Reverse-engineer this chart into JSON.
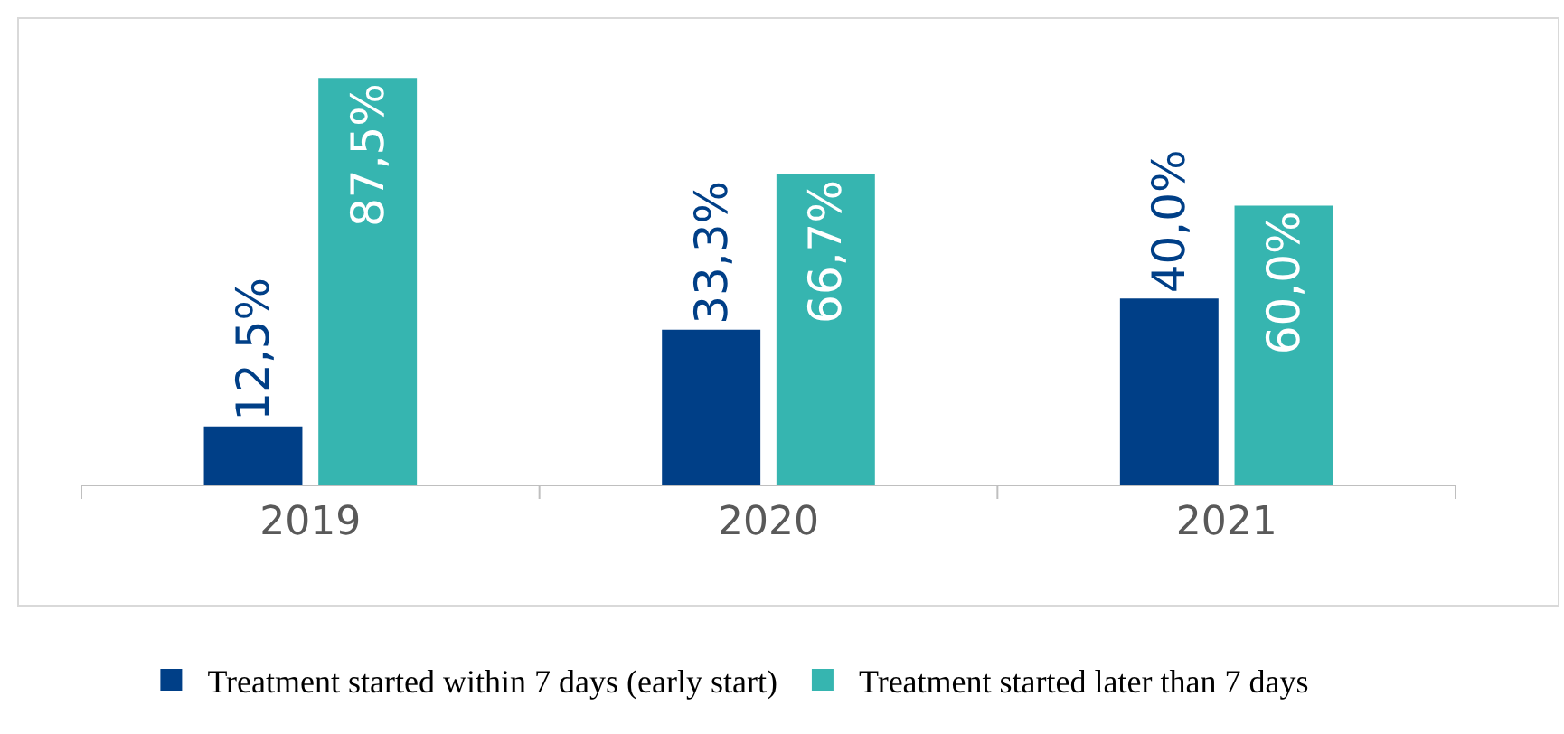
{
  "chart_data": {
    "type": "bar",
    "categories": [
      "2019",
      "2020",
      "2021"
    ],
    "series": [
      {
        "name": "Treatment started within 7 days (early start)",
        "color": "#003f87",
        "values": [
          12.5,
          33.3,
          40.0
        ],
        "value_labels": [
          "12,5%",
          "33,3%",
          "40,0%"
        ]
      },
      {
        "name": "Treatment started later than 7 days",
        "color": "#36b5b0",
        "values": [
          87.5,
          66.7,
          60.0
        ],
        "value_labels": [
          "87,5%",
          "66,7%",
          "60,0%"
        ]
      }
    ],
    "grid": false,
    "legend": "bottom"
  }
}
